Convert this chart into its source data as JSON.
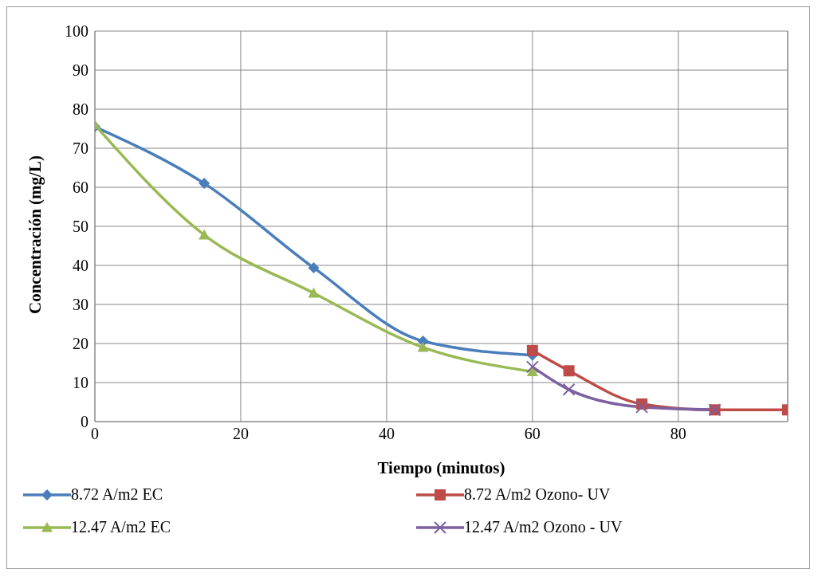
{
  "chart_data": {
    "type": "line",
    "xlabel": "Tiempo (minutos)",
    "ylabel": "Concentración (mg/L)",
    "xlim": [
      0,
      95
    ],
    "xticks": [
      0,
      20,
      40,
      60,
      80
    ],
    "ylim": [
      0,
      100
    ],
    "yticks": [
      0,
      10,
      20,
      30,
      40,
      50,
      60,
      70,
      80,
      90,
      100
    ],
    "grid": true,
    "legend": "bottom",
    "line_style": "solid",
    "series": [
      {
        "name": "8.72 A/m2 EC",
        "color": "#4a7ebb",
        "marker": "diamond",
        "x": [
          0,
          15,
          30,
          45,
          60
        ],
        "values": [
          75.5,
          61,
          39.4,
          20.6,
          17
        ]
      },
      {
        "name": "8.72 A/m2 Ozono- UV",
        "color": "#be4b48",
        "marker": "square",
        "x": [
          60,
          65,
          75,
          85,
          95
        ],
        "values": [
          18.2,
          13,
          4.5,
          3,
          3
        ]
      },
      {
        "name": "12.47 A/m2 EC",
        "color": "#98b954",
        "marker": "triangle",
        "x": [
          0,
          15,
          30,
          45,
          60
        ],
        "values": [
          76,
          47.8,
          32.9,
          19,
          12.8
        ]
      },
      {
        "name": "12.47 A/m2 Ozono - UV",
        "color": "#7d60a0",
        "marker": "cross",
        "x": [
          60,
          65,
          75,
          85
        ],
        "values": [
          14,
          8.2,
          3.7,
          3
        ]
      }
    ]
  }
}
